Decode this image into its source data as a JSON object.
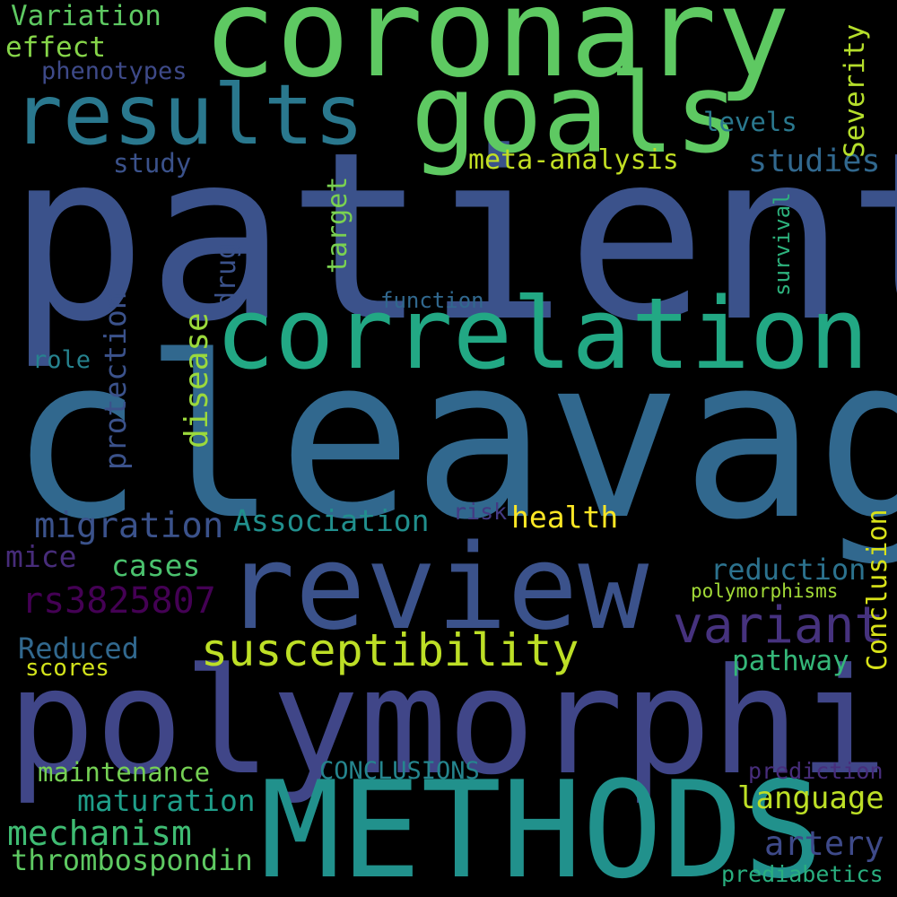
{
  "words": {
    "patients": {
      "text": "patients",
      "color": "#3b528b"
    },
    "cleavage": {
      "text": "cleavage",
      "color": "#31688e"
    },
    "coronary": {
      "text": "coronary",
      "color": "#5ec962"
    },
    "polymorphism": {
      "text": "polymorphism",
      "color": "#404688"
    },
    "METHODS": {
      "text": "METHODS",
      "color": "#21918c"
    },
    "review": {
      "text": "review",
      "color": "#3b528b"
    },
    "goals": {
      "text": "goals",
      "color": "#5ec962"
    },
    "results": {
      "text": "results",
      "color": "#2a788e"
    },
    "correlation": {
      "text": "correlation",
      "color": "#22a884"
    },
    "susceptibility": {
      "text": "susceptibility",
      "color": "#bddf26"
    },
    "variant": {
      "text": "variant",
      "color": "#46327e"
    },
    "migration": {
      "text": "migration",
      "color": "#3b528b"
    },
    "rs3825807": {
      "text": "rs3825807",
      "color": "#440154"
    },
    "mechanism": {
      "text": "mechanism",
      "color": "#3fbc73"
    },
    "thrombospondin": {
      "text": "thrombospondin",
      "color": "#5ec962"
    },
    "maturation": {
      "text": "maturation",
      "color": "#1f9e89"
    },
    "maintenance": {
      "text": "maintenance",
      "color": "#75d054"
    },
    "artery": {
      "text": "artery",
      "color": "#3e4a89"
    },
    "language": {
      "text": "language",
      "color": "#bddf26"
    },
    "CONCLUSIONS": {
      "text": "CONCLUSIONS",
      "color": "#25858e"
    },
    "Association": {
      "text": "Association",
      "color": "#218f8d"
    },
    "health": {
      "text": "health",
      "color": "#fde725"
    },
    "risk": {
      "text": "risk",
      "color": "#443a83"
    },
    "cases": {
      "text": "cases",
      "color": "#4ac16d"
    },
    "mice": {
      "text": "mice",
      "color": "#472c7a"
    },
    "Reduced": {
      "text": "Reduced",
      "color": "#31688e"
    },
    "scores": {
      "text": "scores",
      "color": "#d2e21b"
    },
    "reduction": {
      "text": "reduction",
      "color": "#2c728e"
    },
    "polymorphisms": {
      "text": "polymorphisms",
      "color": "#a2da37"
    },
    "pathway": {
      "text": "pathway",
      "color": "#35b779"
    },
    "prediction": {
      "text": "prediction",
      "color": "#472d7b"
    },
    "prediabetics": {
      "text": "prediabetics",
      "color": "#29af7f"
    },
    "meta_analysis": {
      "text": "meta-analysis",
      "color": "#c2df23"
    },
    "studies": {
      "text": "studies",
      "color": "#31688e"
    },
    "study": {
      "text": "study",
      "color": "#3b528b"
    },
    "levels": {
      "text": "levels",
      "color": "#2a788e"
    },
    "Variation": {
      "text": "Variation",
      "color": "#5ec962"
    },
    "effect": {
      "text": "effect",
      "color": "#86d549"
    },
    "phenotypes": {
      "text": "phenotypes",
      "color": "#3e4a89"
    },
    "role": {
      "text": "role",
      "color": "#26828e"
    },
    "function": {
      "text": "function",
      "color": "#31688e"
    },
    "Severity": {
      "text": "Severity",
      "color": "#b5de2b"
    },
    "survival": {
      "text": "survival",
      "color": "#2db27d"
    },
    "target": {
      "text": "target",
      "color": "#7ad151"
    },
    "drug": {
      "text": "drug",
      "color": "#3b528b"
    },
    "disease": {
      "text": "disease",
      "color": "#9bd93c"
    },
    "protection": {
      "text": "protection",
      "color": "#3b528b"
    },
    "Conclusion": {
      "text": "Conclusion",
      "color": "#d8e219"
    }
  }
}
